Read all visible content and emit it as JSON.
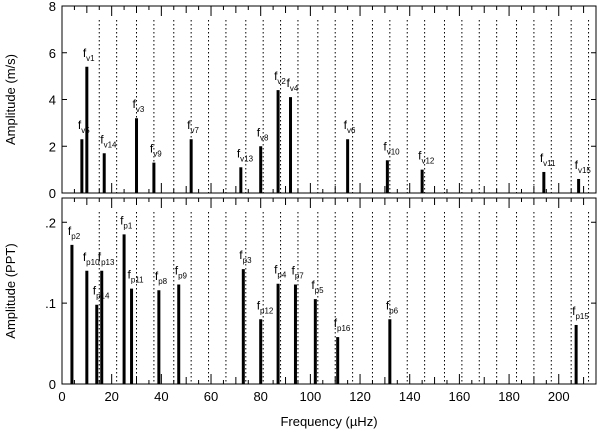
{
  "chart_data": [
    {
      "type": "bar",
      "panel": "top",
      "ylabel": "Amplitude (m/s)",
      "ylim": [
        0,
        8
      ],
      "yticks": [
        0,
        2,
        4,
        6,
        8
      ],
      "ytick_labels": [
        "0",
        "2",
        "4",
        "6",
        "8"
      ],
      "xlim": [
        0,
        215
      ],
      "dotted_lines_at": [
        15,
        22,
        30,
        37,
        45,
        52,
        59,
        66,
        74,
        81,
        88,
        95,
        103,
        110,
        117,
        125,
        132,
        139,
        146,
        154,
        161,
        168,
        175,
        183,
        190,
        197,
        205,
        212
      ],
      "peaks": [
        {
          "label_main": "f",
          "label_sub": "v1",
          "x": 10,
          "y": 5.4
        },
        {
          "label_main": "f",
          "label_sub": "v5",
          "x": 8,
          "y": 2.3
        },
        {
          "label_main": "f",
          "label_sub": "v14",
          "x": 17,
          "y": 1.7
        },
        {
          "label_main": "f",
          "label_sub": "v3",
          "x": 30,
          "y": 3.2
        },
        {
          "label_main": "f",
          "label_sub": "v9",
          "x": 37,
          "y": 1.3
        },
        {
          "label_main": "f",
          "label_sub": "v7",
          "x": 52,
          "y": 2.3
        },
        {
          "label_main": "f",
          "label_sub": "v13",
          "x": 72,
          "y": 1.1
        },
        {
          "label_main": "f",
          "label_sub": "v8",
          "x": 80,
          "y": 2.0
        },
        {
          "label_main": "f",
          "label_sub": "v2",
          "x": 87,
          "y": 4.4
        },
        {
          "label_main": "f",
          "label_sub": "v4",
          "x": 92,
          "y": 4.1
        },
        {
          "label_main": "f",
          "label_sub": "v6",
          "x": 115,
          "y": 2.3
        },
        {
          "label_main": "f",
          "label_sub": "v10",
          "x": 131,
          "y": 1.4
        },
        {
          "label_main": "f",
          "label_sub": "v12",
          "x": 145,
          "y": 1.0
        },
        {
          "label_main": "f",
          "label_sub": "v11",
          "x": 194,
          "y": 0.9
        },
        {
          "label_main": "f",
          "label_sub": "v15",
          "x": 208,
          "y": 0.6
        }
      ]
    },
    {
      "type": "bar",
      "panel": "bottom",
      "xlabel": "Frequency (µHz)",
      "ylabel": "Amplitude (PPT)",
      "ylim": [
        0,
        0.23
      ],
      "yticks": [
        0,
        0.1,
        0.2
      ],
      "ytick_labels": [
        "0",
        ".1",
        ".2"
      ],
      "xlim": [
        0,
        215
      ],
      "xticks": [
        0,
        20,
        40,
        60,
        80,
        100,
        120,
        140,
        160,
        180,
        200
      ],
      "xtick_labels": [
        "0",
        "20",
        "40",
        "60",
        "80",
        "100",
        "120",
        "140",
        "160",
        "180",
        "200"
      ],
      "dotted_lines_at": [
        15,
        22,
        30,
        37,
        45,
        52,
        59,
        66,
        74,
        81,
        88,
        95,
        103,
        110,
        117,
        125,
        132,
        139,
        146,
        154,
        161,
        168,
        175,
        183,
        190,
        197,
        205,
        212
      ],
      "peaks": [
        {
          "label_main": "f",
          "label_sub": "p2",
          "x": 4,
          "y": 0.172
        },
        {
          "label_main": "f",
          "label_sub": "p10",
          "x": 10,
          "y": 0.14
        },
        {
          "label_main": "f",
          "label_sub": "p13",
          "x": 16,
          "y": 0.14
        },
        {
          "label_main": "f",
          "label_sub": "p14",
          "x": 14,
          "y": 0.098
        },
        {
          "label_main": "f",
          "label_sub": "p1",
          "x": 25,
          "y": 0.185
        },
        {
          "label_main": "f",
          "label_sub": "p11",
          "x": 28,
          "y": 0.118
        },
        {
          "label_main": "f",
          "label_sub": "p8",
          "x": 39,
          "y": 0.116
        },
        {
          "label_main": "f",
          "label_sub": "p9",
          "x": 47,
          "y": 0.123
        },
        {
          "label_main": "f",
          "label_sub": "p3",
          "x": 73,
          "y": 0.142
        },
        {
          "label_main": "f",
          "label_sub": "p12",
          "x": 80,
          "y": 0.08
        },
        {
          "label_main": "f",
          "label_sub": "p4",
          "x": 87,
          "y": 0.124
        },
        {
          "label_main": "f",
          "label_sub": "p7",
          "x": 94,
          "y": 0.123
        },
        {
          "label_main": "f",
          "label_sub": "p5",
          "x": 102,
          "y": 0.105
        },
        {
          "label_main": "f",
          "label_sub": "p16",
          "x": 111,
          "y": 0.058
        },
        {
          "label_main": "f",
          "label_sub": "p6",
          "x": 132,
          "y": 0.08
        },
        {
          "label_main": "f",
          "label_sub": "p15",
          "x": 207,
          "y": 0.073
        }
      ]
    }
  ]
}
